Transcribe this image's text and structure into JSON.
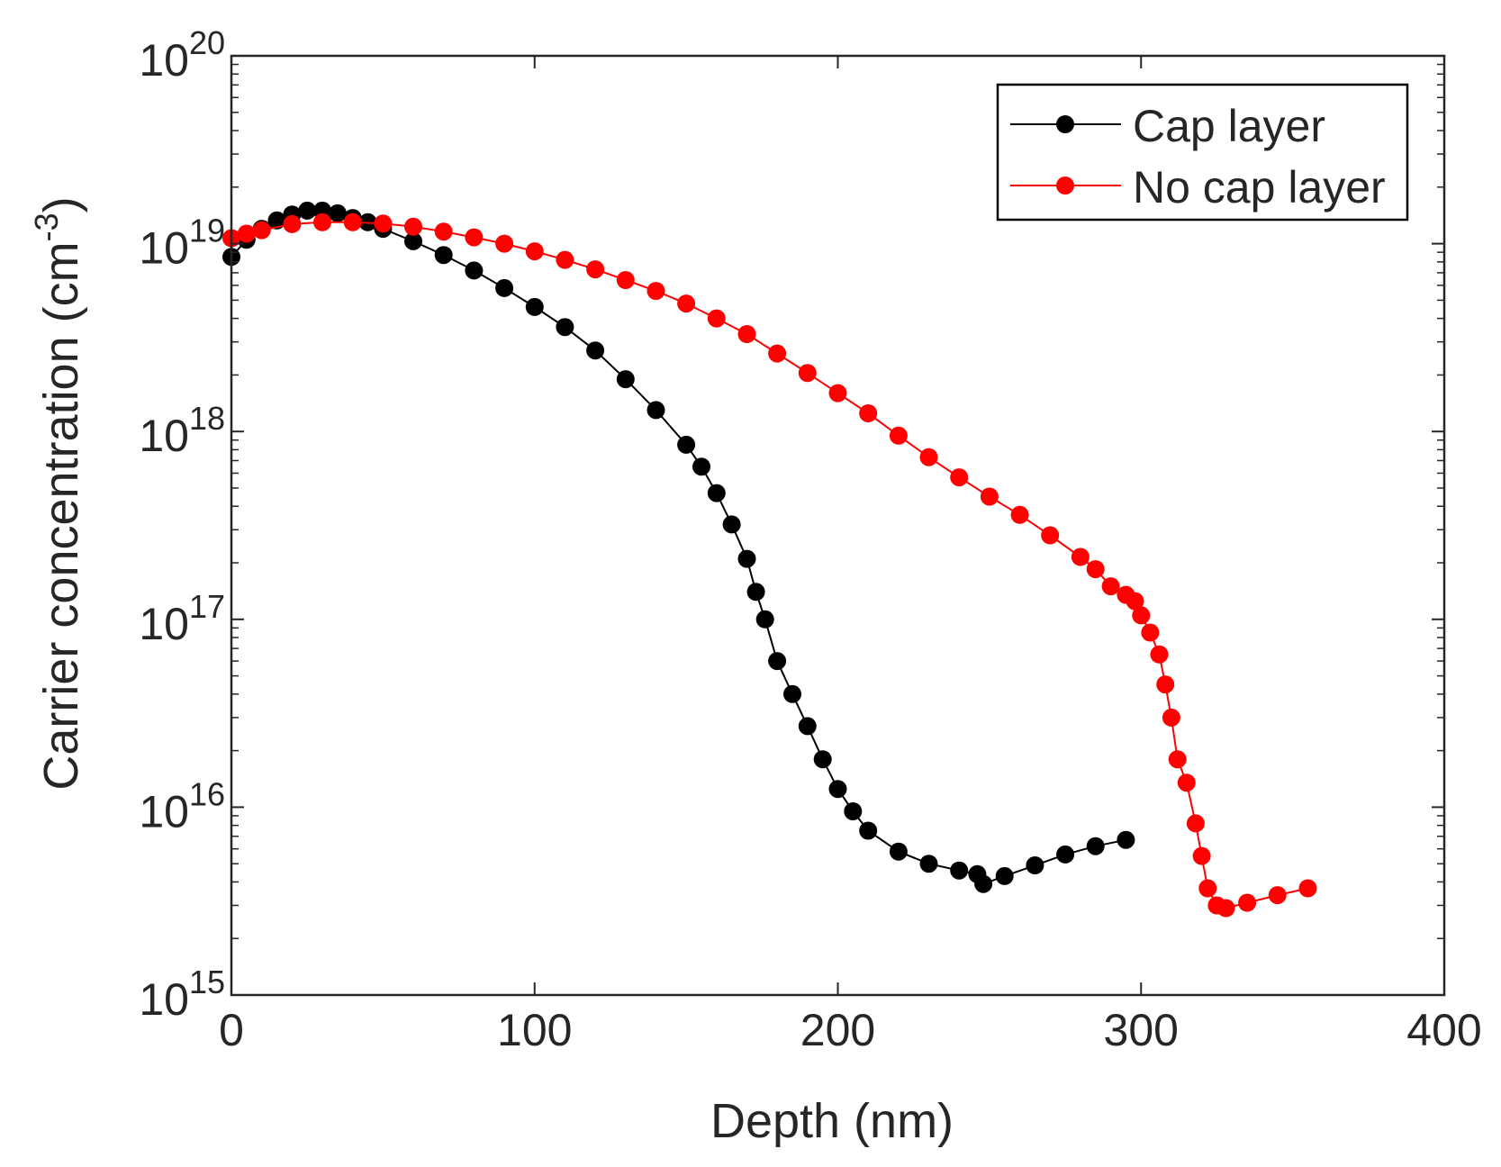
{
  "chart_data": {
    "type": "line",
    "title": "",
    "xlabel": "Depth (nm)",
    "ylabel": "Carrier concentration (cm",
    "ylabel_sup": "-3",
    "ylabel_end": ")",
    "xlim": [
      0,
      400
    ],
    "ylim": [
      1000000000000000.0,
      1e+20
    ],
    "yscale": "log",
    "x_ticks": [
      {
        "value": 0,
        "label": "0"
      },
      {
        "value": 100,
        "label": "100"
      },
      {
        "value": 200,
        "label": "200"
      },
      {
        "value": 300,
        "label": "300"
      },
      {
        "value": 400,
        "label": "400"
      }
    ],
    "y_ticks": [
      {
        "value": 1000000000000000.0,
        "base": "10",
        "exp": "15"
      },
      {
        "value": 1e+16,
        "base": "10",
        "exp": "16"
      },
      {
        "value": 1e+17,
        "base": "10",
        "exp": "17"
      },
      {
        "value": 1e+18,
        "base": "10",
        "exp": "18"
      },
      {
        "value": 1e+19,
        "base": "10",
        "exp": "19"
      },
      {
        "value": 1e+20,
        "base": "10",
        "exp": "20"
      }
    ],
    "legend_position": "top-right",
    "grid": false,
    "series": [
      {
        "name": "Cap layer",
        "color": "#000000",
        "points": [
          [
            0,
            8.5e+18
          ],
          [
            5,
            1.05e+19
          ],
          [
            10,
            1.2e+19
          ],
          [
            15,
            1.33e+19
          ],
          [
            20,
            1.43e+19
          ],
          [
            25,
            1.5e+19
          ],
          [
            30,
            1.5e+19
          ],
          [
            35,
            1.45e+19
          ],
          [
            40,
            1.37e+19
          ],
          [
            45,
            1.3e+19
          ],
          [
            50,
            1.2e+19
          ],
          [
            60,
            1.03e+19
          ],
          [
            70,
            8.7e+18
          ],
          [
            80,
            7.2e+18
          ],
          [
            90,
            5.8e+18
          ],
          [
            100,
            4.6e+18
          ],
          [
            110,
            3.6e+18
          ],
          [
            120,
            2.7e+18
          ],
          [
            130,
            1.9e+18
          ],
          [
            140,
            1.3e+18
          ],
          [
            150,
            8.5e+17
          ],
          [
            155,
            6.5e+17
          ],
          [
            160,
            4.7e+17
          ],
          [
            165,
            3.2e+17
          ],
          [
            170,
            2.1e+17
          ],
          [
            173,
            1.4e+17
          ],
          [
            176,
            1e+17
          ],
          [
            180,
            6e+16
          ],
          [
            185,
            4e+16
          ],
          [
            190,
            2.7e+16
          ],
          [
            195,
            1.8e+16
          ],
          [
            200,
            1.25e+16
          ],
          [
            205,
            9500000000000000.0
          ],
          [
            210,
            7500000000000000.0
          ],
          [
            220,
            5800000000000000.0
          ],
          [
            230,
            5000000000000000.0
          ],
          [
            240,
            4600000000000000.0
          ],
          [
            246,
            4400000000000000.0
          ],
          [
            248,
            3900000000000000.0
          ],
          [
            255,
            4300000000000000.0
          ],
          [
            265,
            4900000000000000.0
          ],
          [
            275,
            5600000000000000.0
          ],
          [
            285,
            6200000000000000.0
          ],
          [
            295,
            6700000000000000.0
          ]
        ]
      },
      {
        "name": "No cap layer",
        "color": "#ff0000",
        "points": [
          [
            0,
            1.07e+19
          ],
          [
            5,
            1.13e+19
          ],
          [
            10,
            1.18e+19
          ],
          [
            20,
            1.27e+19
          ],
          [
            30,
            1.3e+19
          ],
          [
            40,
            1.3e+19
          ],
          [
            50,
            1.28e+19
          ],
          [
            60,
            1.23e+19
          ],
          [
            70,
            1.16e+19
          ],
          [
            80,
            1.08e+19
          ],
          [
            90,
            1e+19
          ],
          [
            100,
            9.1e+18
          ],
          [
            110,
            8.2e+18
          ],
          [
            120,
            7.3e+18
          ],
          [
            130,
            6.4e+18
          ],
          [
            140,
            5.6e+18
          ],
          [
            150,
            4.8e+18
          ],
          [
            160,
            4e+18
          ],
          [
            170,
            3.3e+18
          ],
          [
            180,
            2.6e+18
          ],
          [
            190,
            2.05e+18
          ],
          [
            200,
            1.6e+18
          ],
          [
            210,
            1.25e+18
          ],
          [
            220,
            9.5e+17
          ],
          [
            230,
            7.3e+17
          ],
          [
            240,
            5.7e+17
          ],
          [
            250,
            4.5e+17
          ],
          [
            260,
            3.6e+17
          ],
          [
            270,
            2.8e+17
          ],
          [
            280,
            2.15e+17
          ],
          [
            285,
            1.85e+17
          ],
          [
            290,
            1.5e+17
          ],
          [
            295,
            1.35e+17
          ],
          [
            298,
            1.25e+17
          ],
          [
            300,
            1.05e+17
          ],
          [
            303,
            8.5e+16
          ],
          [
            306,
            6.5e+16
          ],
          [
            308,
            4.5e+16
          ],
          [
            310,
            3e+16
          ],
          [
            312,
            1.8e+16
          ],
          [
            315,
            1.35e+16
          ],
          [
            318,
            8200000000000000.0
          ],
          [
            320,
            5500000000000000.0
          ],
          [
            322,
            3700000000000000.0
          ],
          [
            325,
            3000000000000000.0
          ],
          [
            328,
            2900000000000000.0
          ],
          [
            335,
            3100000000000000.0
          ],
          [
            345,
            3400000000000000.0
          ],
          [
            355,
            3700000000000000.0
          ]
        ]
      }
    ]
  }
}
